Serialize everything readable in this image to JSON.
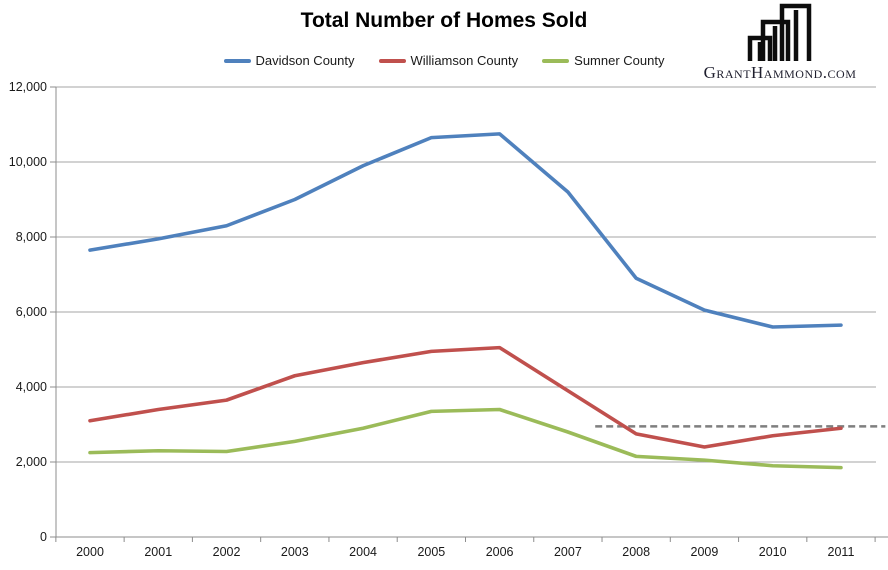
{
  "title": "Total Number of Homes Sold",
  "logo": {
    "text": "GrantHammond.com",
    "icon": "buildings-skyline-icon"
  },
  "chart_data": {
    "type": "line",
    "title": "Total Number of Homes Sold",
    "x": [
      2000,
      2001,
      2002,
      2003,
      2004,
      2005,
      2006,
      2007,
      2008,
      2009,
      2010,
      2011
    ],
    "series": [
      {
        "name": "Davidson County",
        "color": "#4F81BD",
        "values": [
          7650,
          7950,
          8300,
          9000,
          9900,
          10650,
          10750,
          9200,
          6900,
          6050,
          5600,
          5650
        ]
      },
      {
        "name": "Williamson County",
        "color": "#C0504D",
        "values": [
          3100,
          3400,
          3650,
          4300,
          4650,
          4950,
          5050,
          3900,
          2750,
          2400,
          2700,
          2900
        ]
      },
      {
        "name": "Sumner County",
        "color": "#9BBB59",
        "values": [
          2250,
          2300,
          2280,
          2550,
          2900,
          3350,
          3400,
          2800,
          2150,
          2050,
          1900,
          1850
        ]
      }
    ],
    "reference_line": {
      "value": 2950,
      "style": "dashed",
      "color": "#7f7f7f",
      "from_year": 2007.4,
      "to_year": 2011.65
    },
    "ylim": [
      0,
      12000
    ],
    "ytick_interval": 2000,
    "ytick_labels": [
      "0",
      "2,000",
      "4,000",
      "6,000",
      "8,000",
      "10,000",
      "12,000"
    ],
    "grid": true,
    "legend_position": "top"
  }
}
